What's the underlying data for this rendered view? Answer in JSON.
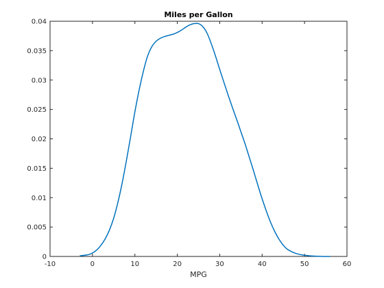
{
  "chart_data": {
    "type": "line",
    "title": "Miles per Gallon",
    "xlabel": "MPG",
    "ylabel": "",
    "xlim": [
      -10,
      60
    ],
    "ylim": [
      0,
      0.04
    ],
    "xticks": [
      -10,
      0,
      10,
      20,
      30,
      40,
      50,
      60
    ],
    "xtick_labels": [
      "-10",
      "0",
      "10",
      "20",
      "30",
      "40",
      "50",
      "60"
    ],
    "yticks": [
      0,
      0.005,
      0.01,
      0.015,
      0.02,
      0.025,
      0.03,
      0.035,
      0.04
    ],
    "ytick_labels": [
      "0",
      "0.005",
      "0.01",
      "0.015",
      "0.02",
      "0.025",
      "0.03",
      "0.035",
      "0.04"
    ],
    "grid": false,
    "series": [
      {
        "color": "#0072bd",
        "x": [
          -3,
          -1,
          0,
          1,
          2,
          3,
          4,
          5,
          6,
          7,
          8,
          9,
          10,
          11,
          12,
          13,
          14,
          15,
          16,
          17,
          18,
          19,
          20,
          21,
          22,
          23,
          24,
          25,
          26,
          27,
          28,
          29,
          30,
          31,
          32,
          33,
          34,
          35,
          36,
          37,
          38,
          39,
          40,
          41,
          42,
          43,
          44,
          45,
          46,
          48,
          50,
          52,
          54,
          56
        ],
        "y": [
          0.0001,
          0.0003,
          0.0006,
          0.0011,
          0.0019,
          0.003,
          0.0045,
          0.0065,
          0.0092,
          0.0125,
          0.0163,
          0.0204,
          0.0246,
          0.0283,
          0.0315,
          0.0341,
          0.0357,
          0.0366,
          0.0371,
          0.0374,
          0.0376,
          0.0378,
          0.0381,
          0.0385,
          0.039,
          0.0394,
          0.0396,
          0.0396,
          0.0391,
          0.038,
          0.0362,
          0.0341,
          0.0318,
          0.0296,
          0.0274,
          0.0253,
          0.0233,
          0.0212,
          0.0191,
          0.0168,
          0.0145,
          0.0121,
          0.0098,
          0.0077,
          0.0058,
          0.0042,
          0.0029,
          0.0019,
          0.0012,
          0.0005,
          0.0002,
          7e-05,
          2e-05,
          0.0
        ]
      }
    ]
  }
}
